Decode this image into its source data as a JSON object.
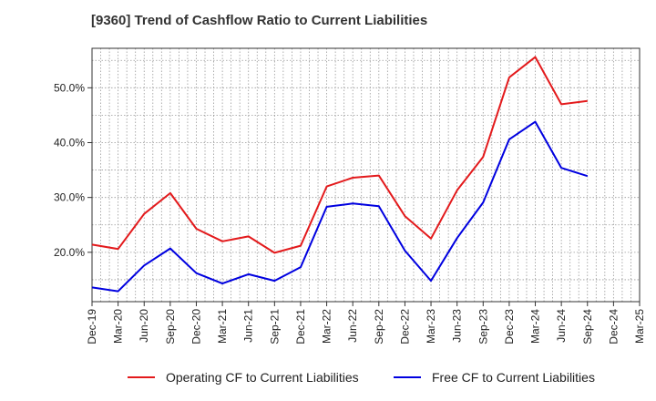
{
  "chart_data": {
    "type": "line",
    "title": "[9360]  Trend of Cashflow Ratio to Current Liabilities",
    "xlabel": "",
    "ylabel": "",
    "categories": [
      "Dec-19",
      "Mar-20",
      "Jun-20",
      "Sep-20",
      "Dec-20",
      "Mar-21",
      "Jun-21",
      "Sep-21",
      "Dec-21",
      "Mar-22",
      "Jun-22",
      "Sep-22",
      "Dec-22",
      "Mar-23",
      "Jun-23",
      "Sep-23",
      "Dec-23",
      "Mar-24",
      "Jun-24",
      "Sep-24",
      "Dec-24",
      "Mar-25"
    ],
    "series": [
      {
        "name": "Operating CF to Current Liabilities",
        "color": "#e31a1c",
        "values": [
          21.4,
          20.6,
          27.0,
          30.8,
          24.3,
          22.0,
          22.9,
          19.9,
          21.2,
          32.0,
          33.6,
          34.0,
          26.6,
          22.5,
          31.3,
          37.4,
          51.9,
          55.6,
          47.0,
          47.6,
          null,
          null
        ]
      },
      {
        "name": "Free CF to Current Liabilities",
        "color": "#0000e0",
        "values": [
          13.6,
          12.9,
          17.6,
          20.7,
          16.2,
          14.3,
          16.0,
          14.8,
          17.3,
          28.3,
          28.9,
          28.4,
          20.3,
          14.8,
          22.6,
          29.1,
          40.6,
          43.8,
          35.4,
          33.9,
          null,
          null
        ]
      }
    ],
    "y_ticks": [
      {
        "value": 20,
        "label": "20.0%"
      },
      {
        "value": 30,
        "label": "30.0%"
      },
      {
        "value": 40,
        "label": "40.0%"
      },
      {
        "value": 50,
        "label": "50.0%"
      }
    ],
    "ylim": [
      11.0,
      57.2
    ],
    "grid": true,
    "legend_position": "bottom"
  }
}
